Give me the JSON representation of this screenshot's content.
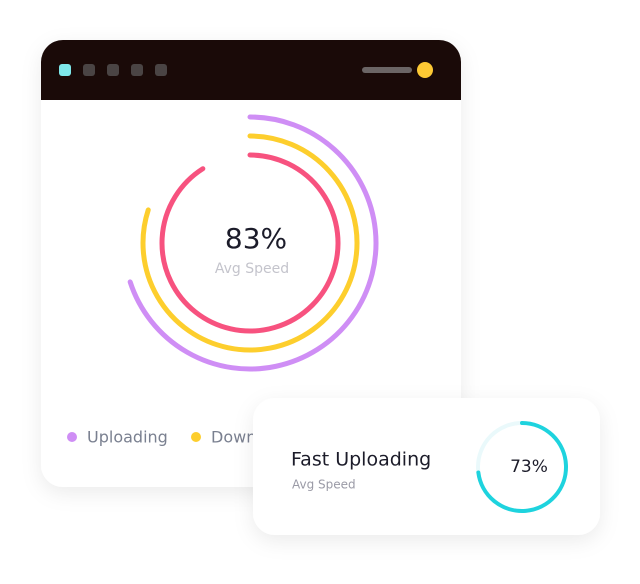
{
  "chart_data": [
    {
      "type": "radial",
      "center_value": 83,
      "center_value_label": "83%",
      "subtitle": "Avg Speed",
      "ylim": [
        0,
        100
      ],
      "series": [
        {
          "name": "Uploading",
          "color": "#cf8ef5",
          "values": [
            70
          ]
        },
        {
          "name": "Downloading",
          "color": "#fdce2d",
          "values": [
            80
          ]
        },
        {
          "color": "#f7527f",
          "values": [
            91
          ]
        }
      ]
    },
    {
      "type": "gauge",
      "title": "Fast Uploading",
      "subtitle": "Avg Speed",
      "ylim": [
        0,
        100
      ],
      "color": "#1ed3de",
      "values": [
        73
      ],
      "value_labels": [
        "73%"
      ]
    }
  ]
}
